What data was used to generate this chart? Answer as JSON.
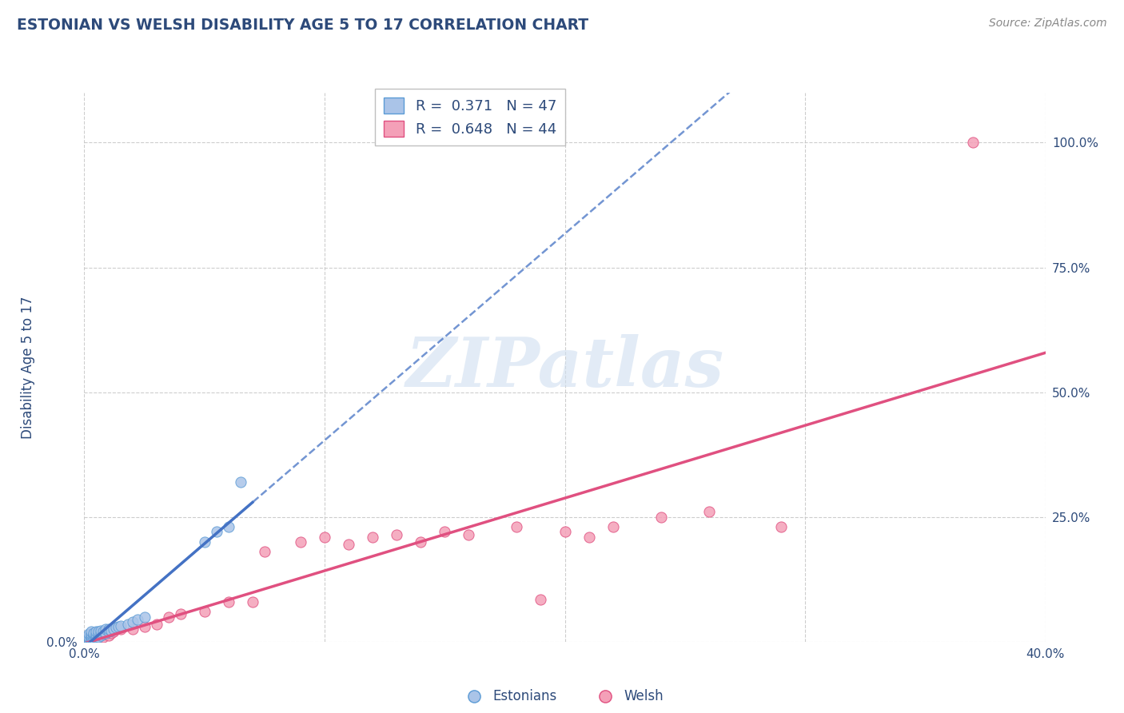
{
  "title": "ESTONIAN VS WELSH DISABILITY AGE 5 TO 17 CORRELATION CHART",
  "source": "Source: ZipAtlas.com",
  "ylabel_label": "Disability Age 5 to 17",
  "xlim": [
    0.0,
    0.4
  ],
  "ylim": [
    0.0,
    1.1
  ],
  "x_ticks": [
    0.0,
    0.1,
    0.2,
    0.3,
    0.4
  ],
  "x_tick_labels": [
    "0.0%",
    "",
    "",
    "",
    "40.0%"
  ],
  "y_ticks": [
    0.0,
    0.25,
    0.5,
    0.75,
    1.0
  ],
  "y_tick_labels_left": [
    "0.0%",
    "",
    "",
    "",
    ""
  ],
  "y_tick_labels_right": [
    "",
    "25.0%",
    "50.0%",
    "75.0%",
    "100.0%"
  ],
  "title_color": "#2d4a7a",
  "axis_color": "#2d4a7a",
  "tick_color": "#2d4a7a",
  "grid_color": "#c8c8c8",
  "watermark_text": "ZIPatlas",
  "watermark_color": "#d0dff0",
  "R_estonian": 0.371,
  "N_estonian": 47,
  "R_welsh": 0.648,
  "N_welsh": 44,
  "estonian_fill": "#aac4e8",
  "estonian_edge": "#5b9bd5",
  "welsh_fill": "#f4a0b8",
  "welsh_edge": "#e05080",
  "trend_estonian_color": "#4472c4",
  "trend_welsh_color": "#e05080",
  "estonian_x": [
    0.001,
    0.001,
    0.001,
    0.002,
    0.002,
    0.002,
    0.002,
    0.003,
    0.003,
    0.003,
    0.003,
    0.003,
    0.003,
    0.004,
    0.004,
    0.004,
    0.004,
    0.005,
    0.005,
    0.005,
    0.005,
    0.005,
    0.006,
    0.006,
    0.006,
    0.007,
    0.007,
    0.007,
    0.008,
    0.008,
    0.009,
    0.009,
    0.01,
    0.01,
    0.011,
    0.012,
    0.013,
    0.014,
    0.015,
    0.018,
    0.02,
    0.022,
    0.025,
    0.05,
    0.055,
    0.06,
    0.065
  ],
  "estonian_y": [
    0.005,
    0.008,
    0.01,
    0.005,
    0.008,
    0.01,
    0.015,
    0.005,
    0.008,
    0.01,
    0.012,
    0.015,
    0.02,
    0.008,
    0.012,
    0.015,
    0.018,
    0.008,
    0.01,
    0.012,
    0.015,
    0.02,
    0.01,
    0.015,
    0.02,
    0.012,
    0.018,
    0.022,
    0.015,
    0.02,
    0.018,
    0.025,
    0.02,
    0.025,
    0.022,
    0.025,
    0.028,
    0.03,
    0.032,
    0.035,
    0.04,
    0.045,
    0.05,
    0.2,
    0.22,
    0.23,
    0.32
  ],
  "welsh_x": [
    0.001,
    0.002,
    0.003,
    0.003,
    0.004,
    0.005,
    0.005,
    0.006,
    0.007,
    0.008,
    0.008,
    0.009,
    0.01,
    0.01,
    0.011,
    0.012,
    0.013,
    0.015,
    0.02,
    0.025,
    0.03,
    0.035,
    0.04,
    0.05,
    0.06,
    0.07,
    0.075,
    0.09,
    0.1,
    0.11,
    0.12,
    0.13,
    0.14,
    0.15,
    0.16,
    0.18,
    0.19,
    0.2,
    0.21,
    0.22,
    0.24,
    0.26,
    0.29,
    0.37
  ],
  "welsh_y": [
    0.005,
    0.008,
    0.008,
    0.012,
    0.01,
    0.008,
    0.015,
    0.012,
    0.015,
    0.01,
    0.018,
    0.015,
    0.012,
    0.02,
    0.018,
    0.02,
    0.025,
    0.025,
    0.025,
    0.03,
    0.035,
    0.05,
    0.055,
    0.06,
    0.08,
    0.08,
    0.18,
    0.2,
    0.21,
    0.195,
    0.21,
    0.215,
    0.2,
    0.22,
    0.215,
    0.23,
    0.085,
    0.22,
    0.21,
    0.23,
    0.25,
    0.26,
    0.23,
    1.0
  ],
  "background_color": "#ffffff"
}
